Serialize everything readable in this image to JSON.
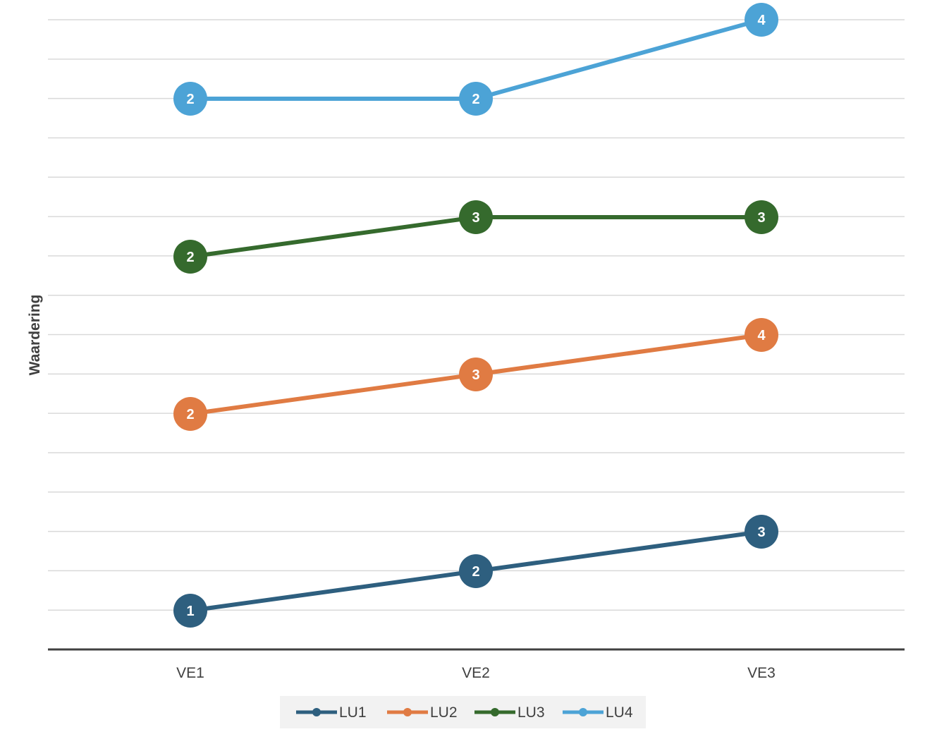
{
  "chart_data": {
    "type": "line",
    "title": "",
    "xlabel": "",
    "ylabel": "Waardering",
    "categories": [
      "VE1",
      "VE2",
      "VE3"
    ],
    "series": [
      {
        "name": "LU1",
        "values": [
          1,
          2,
          3
        ],
        "color": "#2e5f7f"
      },
      {
        "name": "LU2",
        "values": [
          2,
          3,
          4
        ],
        "color": "#e07b43"
      },
      {
        "name": "LU3",
        "values": [
          2,
          3,
          3
        ],
        "color": "#356a2d"
      },
      {
        "name": "LU4",
        "values": [
          2,
          2,
          4
        ],
        "color": "#4ca3d6"
      }
    ],
    "y_axis_ticks_visible": false,
    "grid": true,
    "legend_position": "bottom",
    "data_labels": true
  }
}
